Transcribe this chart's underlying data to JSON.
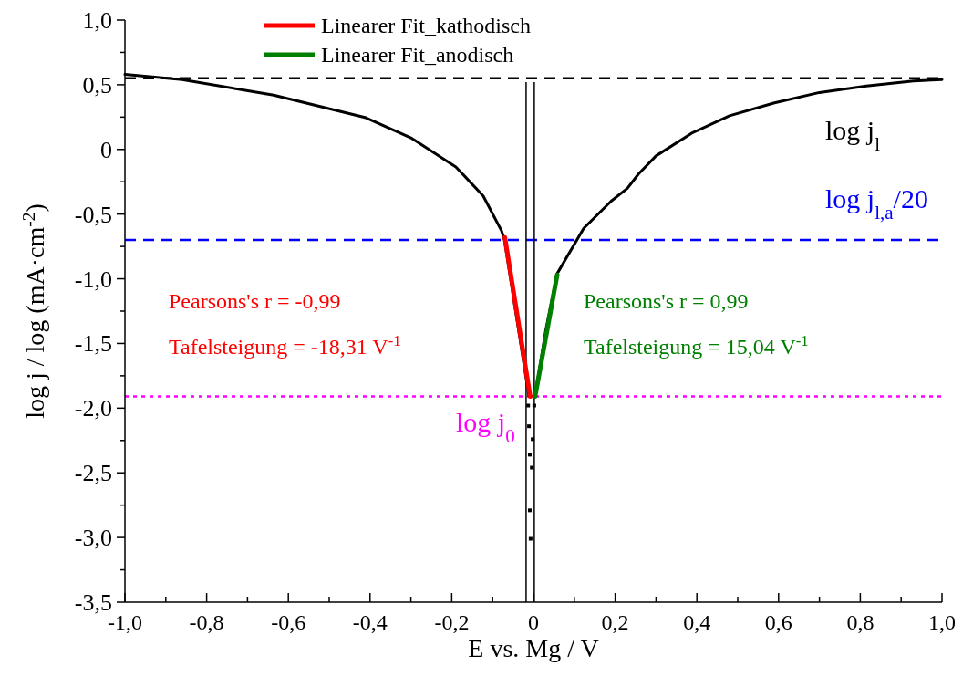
{
  "chart_data": {
    "type": "line",
    "xlabel": "E vs. Mg / V",
    "ylabel": "log j / log (mA·cm$^{-2}$)",
    "xlim": [
      -1,
      1
    ],
    "ylim": [
      -3.5,
      1
    ],
    "xticks": [
      {
        "value": -1,
        "label": "-1,0"
      },
      {
        "value": -0.8,
        "label": "-0,8"
      },
      {
        "value": -0.6,
        "label": "-0,6"
      },
      {
        "value": -0.4,
        "label": "-0,4"
      },
      {
        "value": -0.2,
        "label": "-0,2"
      },
      0,
      {
        "value": 0.2,
        "label": "0,2"
      },
      {
        "value": 0.4,
        "label": "0,4"
      },
      {
        "value": 0.6,
        "label": "0,6"
      },
      {
        "value": 0.8,
        "label": "0,8"
      },
      {
        "value": 1,
        "label": "1,0"
      }
    ],
    "yticks": [
      {
        "value": -3.5,
        "label": "-3,5"
      },
      {
        "value": -3,
        "label": "-3,0"
      },
      {
        "value": -2.5,
        "label": "-2,5"
      },
      {
        "value": -2,
        "label": "-2,0"
      },
      {
        "value": -1.5,
        "label": "-1,5"
      },
      {
        "value": -1,
        "label": "-1,0"
      },
      {
        "value": -0.5,
        "label": "-0,5"
      },
      0,
      {
        "value": 0.5,
        "label": "0,5"
      },
      {
        "value": 1,
        "label": "1,0"
      }
    ],
    "legend": "top",
    "line_style": "solid",
    "series": [
      {
        "color": "#000000",
        "x": [
          -1,
          -0.86,
          -0.636,
          -0.41,
          -0.3,
          -0.19,
          -0.123,
          -0.078,
          -0.071,
          -0.011,
          0.004,
          0.03,
          0.058,
          0.123,
          0.19,
          0.23,
          0.257,
          0.3,
          0.39,
          0.48,
          0.59,
          0.7,
          0.815,
          0.93,
          1
        ],
        "values": [
          0.58,
          0.54,
          0.42,
          0.245,
          0.09,
          -0.135,
          -0.36,
          -0.63,
          -0.7,
          -1.91,
          -1.91,
          -1.4,
          -0.96,
          -0.61,
          -0.4,
          -0.3,
          -0.19,
          -0.05,
          0.13,
          0.26,
          0.36,
          0.44,
          0.49,
          0.53,
          0.54
        ]
      },
      {
        "name": "Linearer Fit_kathodisch",
        "color": "#ff0000",
        "x": [
          -0.07,
          -0.008
        ],
        "values": [
          -0.68,
          -1.91
        ]
      },
      {
        "name": "Linearer Fit_anodisch",
        "color": "#008000",
        "x": [
          0.004,
          0.058
        ],
        "values": [
          -1.91,
          -0.97
        ]
      },
      {
        "type": "scatter",
        "marker": "square",
        "color": "#000000",
        "x": [
          -0.013,
          0.002,
          -0.011,
          -0.002,
          -0.009,
          -0.004,
          -0.009,
          -0.007
        ],
        "values": [
          -1.98,
          -1.98,
          -2.14,
          -2.24,
          -2.36,
          -2.46,
          -2.79,
          -3.01
        ]
      }
    ],
    "ref_lines": [
      {
        "axis": "y",
        "value": 0.55,
        "label": "log j$_{l}$",
        "color": "#000000",
        "line_style": "dashed"
      },
      {
        "axis": "y",
        "value": -0.7,
        "label": "log j$_{l,a}$/20",
        "color": "#0000ff",
        "line_style": "dashed"
      },
      {
        "axis": "y",
        "value": -1.91,
        "label": "log j$_{0}$",
        "color": "#ff00ff",
        "line_style": "dotted"
      },
      {
        "axis": "x",
        "value": -0.018,
        "color": "#000000",
        "line_style": "solid"
      },
      {
        "axis": "x",
        "value": 0.002,
        "color": "#000000",
        "line_style": "solid"
      }
    ],
    "annotations": [
      "Pearsons's r = -0,99",
      "Tafelsteigung = -18,31 V$^{-1}$",
      "Pearsons's r = 0,99",
      "Tafelsteigung = 15,04 V$^{-1}$"
    ]
  }
}
